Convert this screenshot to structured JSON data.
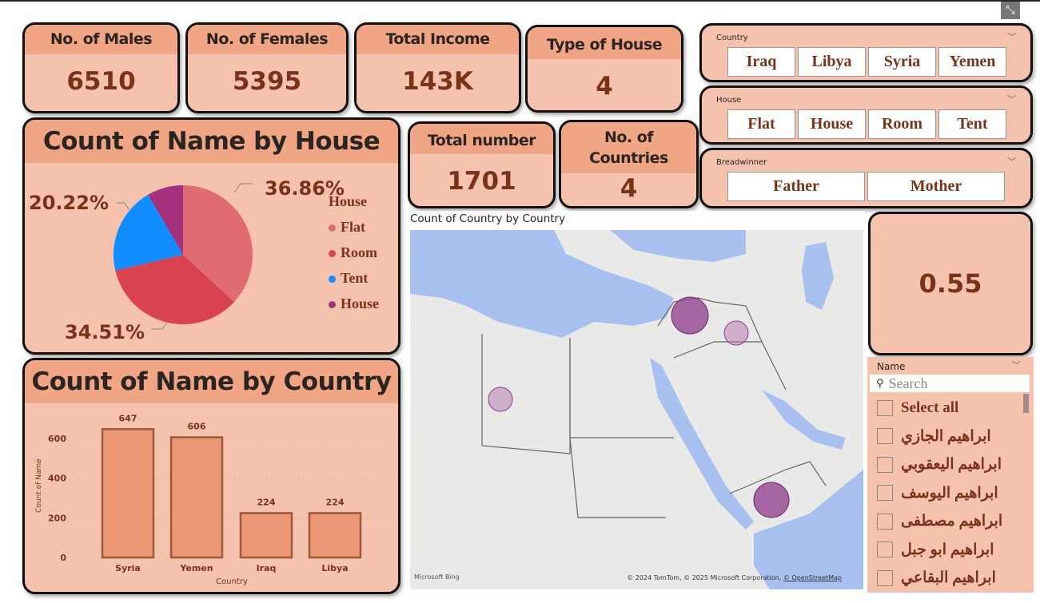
{
  "kpis": {
    "males": {
      "title": "No. of Males",
      "value": "6510"
    },
    "females": {
      "title": "No. of Females",
      "value": "5395"
    },
    "income": {
      "title": "Total Income",
      "value": "143K"
    },
    "house_type": {
      "title": "Type of House",
      "value": "4"
    },
    "total": {
      "title": "Total number",
      "value": "1701"
    },
    "countries": {
      "title": "No. of Countries",
      "value": "4"
    },
    "ratio": {
      "value": "0.55"
    }
  },
  "slicers": {
    "country": {
      "label": "Country",
      "options": [
        "Iraq",
        "Libya",
        "Syria",
        "Yemen"
      ]
    },
    "house": {
      "label": "House",
      "options": [
        "Flat",
        "House",
        "Room",
        "Tent"
      ]
    },
    "breadwinner": {
      "label": "Breadwinner",
      "options": [
        "Father",
        "Mother"
      ]
    }
  },
  "chart_data": [
    {
      "type": "pie",
      "title": "Count of Name by House",
      "legend_title": "House",
      "legend": "right",
      "slices": [
        {
          "name": "Flat",
          "percent": 36.86,
          "label": "36.86%",
          "color": "#e06b72"
        },
        {
          "name": "Room",
          "percent": 34.51,
          "label": "34.51%",
          "color": "#d9434f"
        },
        {
          "name": "Tent",
          "percent": 20.22,
          "label": "20.22%",
          "color": "#118dff"
        },
        {
          "name": "House",
          "percent": 8.41,
          "color": "#a3307d"
        }
      ]
    },
    {
      "type": "bar",
      "title": "Count of Name by Country",
      "categories": [
        "Syria",
        "Yemen",
        "Iraq",
        "Libya"
      ],
      "values": [
        647,
        606,
        224,
        224
      ],
      "xlabel": "Country",
      "ylabel": "Count of Name",
      "ylim": [
        0,
        700
      ],
      "yticks": [
        0,
        200,
        400,
        600
      ],
      "grid": true
    }
  ],
  "map": {
    "title": "Count of Country by Country",
    "attribution": "© 2024 TomTom, © 2025 Microsoft Corporation,",
    "osm": "© OpenStreetMap",
    "logo": "Microsoft Bing"
  },
  "name_slicer": {
    "label": "Name",
    "search_placeholder": "Search",
    "items": [
      "Select all",
      "ابراهيم الجازي",
      "ابراهيم اليعقوبي",
      "ابراهيم اليوسف",
      "ابراهيم مصطفى",
      "ابراهيم ابو جبل",
      "ابراهيم البقاعي"
    ]
  },
  "colors": {
    "header": "#f0a584",
    "body": "#f4c2ad",
    "text": "#7a3318",
    "bar": "#ec9874",
    "bubble": "#8e3a8c"
  }
}
